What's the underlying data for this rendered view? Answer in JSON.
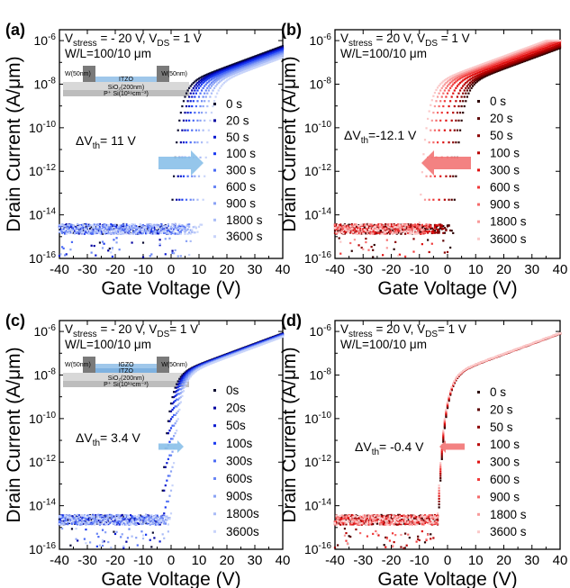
{
  "shared": {
    "xlabel": "Gate Voltage (V)",
    "ylabel": "Drain Current (A/μm)",
    "xticks": [
      "-40",
      "-30",
      "-20",
      "-10",
      "0",
      "10",
      "20",
      "30",
      "40"
    ],
    "yticks": [
      {
        "m": "10",
        "e": "-6"
      },
      {
        "m": "10",
        "e": "-8"
      },
      {
        "m": "10",
        "e": "-10"
      },
      {
        "m": "10",
        "e": "-12"
      },
      {
        "m": "10",
        "e": "-14"
      },
      {
        "m": "10",
        "e": "-16"
      }
    ],
    "xlim": [
      -40,
      40
    ],
    "ylim_log10": [
      -16,
      -5.5
    ],
    "yscale": "log"
  },
  "chart_data": [
    {
      "type": "scatter",
      "panel": "(a)",
      "cond1": {
        "pre": "V",
        "sub": "stress",
        "post": " = - 20 V, V"
      },
      "cond1b": {
        "sub": "DS",
        "post": " = 1 V"
      },
      "cond2": "W/L=100/10 μm",
      "delta": {
        "pre": "ΔV",
        "sub": "th",
        "post": "= 11 V"
      },
      "arrow_dir": "right",
      "device": {
        "layers": [
          "W(50nm)",
          "ITZO",
          "W(50nm)",
          "SiO₂(200nm)",
          "P⁺ Si(10¹⁹cm⁻³)"
        ]
      },
      "colors": [
        "#0a0a30",
        "#0000a0",
        "#0a1ad0",
        "#1a3af0",
        "#4a6af5",
        "#6a86f5",
        "#8aa2f5",
        "#aabcf7",
        "#c8d4fa"
      ],
      "series": [
        {
          "name": "0 s",
          "vth": 0
        },
        {
          "name": "20 s",
          "vth": 1.5
        },
        {
          "name": "50 s",
          "vth": 2.5
        },
        {
          "name": "100 s",
          "vth": 3.5
        },
        {
          "name": "300 s",
          "vth": 5
        },
        {
          "name": "600 s",
          "vth": 6.5
        },
        {
          "name": "900 s",
          "vth": 7.5
        },
        {
          "name": "1800 s",
          "vth": 9
        },
        {
          "name": "3600 s",
          "vth": 11
        }
      ]
    },
    {
      "type": "scatter",
      "panel": "(b)",
      "cond1": {
        "pre": "V",
        "sub": "stress",
        "post": " = 20 V, V"
      },
      "cond1b": {
        "sub": "DS",
        "post": " = 1 V"
      },
      "cond2": "W/L=100/10 μm",
      "delta": {
        "pre": "ΔV",
        "sub": "th",
        "post": "=-12.1 V"
      },
      "arrow_dir": "left",
      "device": null,
      "colors": [
        "#2a0000",
        "#5a0000",
        "#8a0000",
        "#b80000",
        "#e01010",
        "#f03a3a",
        "#f56a6a",
        "#f89a9a",
        "#fbc8c8"
      ],
      "series": [
        {
          "name": "0 s",
          "vth": 2
        },
        {
          "name": "20 s",
          "vth": 1
        },
        {
          "name": "50 s",
          "vth": 0
        },
        {
          "name": "100 s",
          "vth": -1.5
        },
        {
          "name": "300 s",
          "vth": -3.5
        },
        {
          "name": "600 s",
          "vth": -5.5
        },
        {
          "name": "900 s",
          "vth": -7
        },
        {
          "name": "1800 s",
          "vth": -8.5
        },
        {
          "name": "3600 s",
          "vth": -10.1
        }
      ]
    },
    {
      "type": "scatter",
      "panel": "(c)",
      "cond1": {
        "pre": "V",
        "sub": "stress",
        "post": " = - 20 V, V"
      },
      "cond1b": {
        "sub": "DS",
        "post": "= 1 V"
      },
      "cond2": "W/L=100/10 μm",
      "delta": {
        "pre": "ΔV",
        "sub": "th",
        "post": "= 3.4 V"
      },
      "arrow_dir": "right",
      "device": {
        "layers": [
          "W(50nm)",
          "IGZO",
          "ITZO",
          "W(50nm)",
          "SiO₂(200nm)",
          "P⁺ Si(10¹⁹cm⁻³)"
        ]
      },
      "colors": [
        "#0a0a30",
        "#0000a0",
        "#0a1ad0",
        "#1a3af0",
        "#4a6af5",
        "#6a86f5",
        "#8aa2f5",
        "#aabcf7",
        "#c8d4fa"
      ],
      "series": [
        {
          "name": "0s",
          "vth": -3.5
        },
        {
          "name": "20s",
          "vth": -3
        },
        {
          "name": "50s",
          "vth": -2.6
        },
        {
          "name": "100s",
          "vth": -2.2
        },
        {
          "name": "300s",
          "vth": -1.8
        },
        {
          "name": "600s",
          "vth": -1.3
        },
        {
          "name": "900s",
          "vth": -0.9
        },
        {
          "name": "1800s",
          "vth": -0.5
        },
        {
          "name": "3600s",
          "vth": -0.1
        }
      ]
    },
    {
      "type": "scatter",
      "panel": "(d)",
      "cond1": {
        "pre": "V",
        "sub": "stress",
        "post": " = 20 V, V"
      },
      "cond1b": {
        "sub": "DS",
        "post": "= 1 V"
      },
      "cond2": "W/L=100/10 μm",
      "delta": {
        "pre": "ΔV",
        "sub": "th",
        "post": "= -0.4 V"
      },
      "arrow_dir": "left",
      "device": null,
      "colors": [
        "#2a0000",
        "#5a0000",
        "#8a0000",
        "#b80000",
        "#e01010",
        "#f03a3a",
        "#f56a6a",
        "#f89a9a",
        "#fbc8c8"
      ],
      "series": [
        {
          "name": "0 s",
          "vth": -3.2
        },
        {
          "name": "20 s",
          "vth": -3.25
        },
        {
          "name": "50 s",
          "vth": -3.3
        },
        {
          "name": "100 s",
          "vth": -3.35
        },
        {
          "name": "300 s",
          "vth": -3.4
        },
        {
          "name": "600 s",
          "vth": -3.45
        },
        {
          "name": "900 s",
          "vth": -3.5
        },
        {
          "name": "1800 s",
          "vth": -3.55
        },
        {
          "name": "3600 s",
          "vth": -3.6
        }
      ]
    }
  ]
}
